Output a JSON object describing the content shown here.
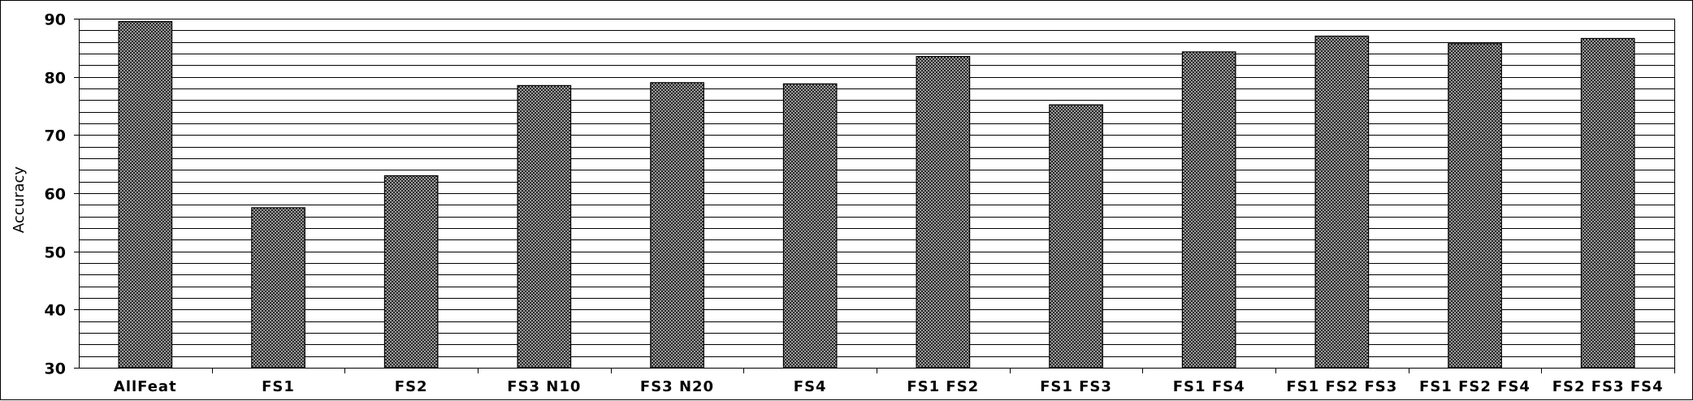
{
  "chart_data": {
    "type": "bar",
    "title": "",
    "xlabel": "",
    "ylabel": "Accuracy",
    "ylim": [
      30,
      90
    ],
    "yticks": [
      30,
      40,
      50,
      60,
      70,
      80,
      90
    ],
    "minor_grid_step": 2,
    "grid": true,
    "legend": "none",
    "bar_fill": "crosshatch-gray",
    "categories": [
      "AllFeat",
      "FS1",
      "FS2",
      "FS3 N10",
      "FS3 N20",
      "FS4",
      "FS1 FS2",
      "FS1 FS3",
      "FS1 FS4",
      "FS1 FS2 FS3",
      "FS1 FS2 FS4",
      "FS2 FS3 FS4"
    ],
    "values": [
      89.5,
      57.5,
      63,
      78.5,
      79,
      78.8,
      83.5,
      75.2,
      84.3,
      87,
      85.7,
      86.6
    ]
  }
}
